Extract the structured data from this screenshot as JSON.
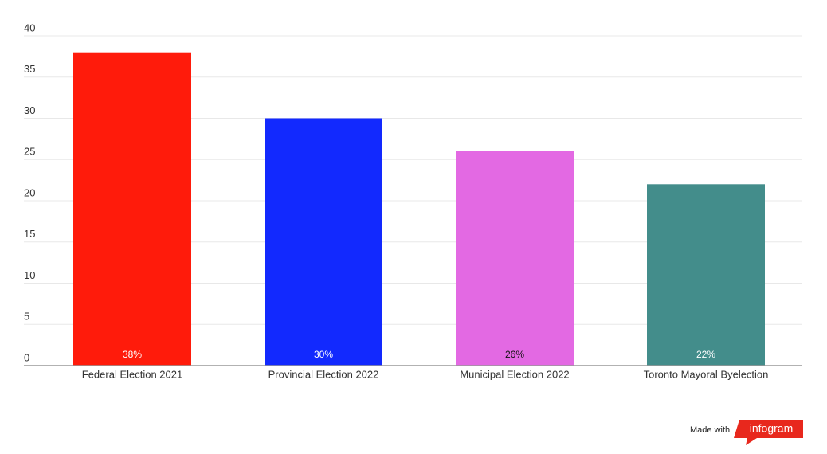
{
  "chart_data": {
    "type": "bar",
    "categories": [
      "Federal Election 2021",
      "Provincial Election 2022",
      "Municipal Election 2022",
      "Toronto Mayoral Byelection"
    ],
    "values": [
      38,
      30,
      26,
      22
    ],
    "value_labels": [
      "38%",
      "30%",
      "26%",
      "22%"
    ],
    "colors": [
      "#ff1b0b",
      "#1229fe",
      "#e369e3",
      "#438d8b"
    ],
    "ylim": [
      0,
      40
    ],
    "yticks": [
      0,
      5,
      10,
      15,
      20,
      25,
      30,
      35,
      40
    ],
    "grid": true
  },
  "footer": {
    "made_with": "Made with",
    "brand": "infogram"
  }
}
